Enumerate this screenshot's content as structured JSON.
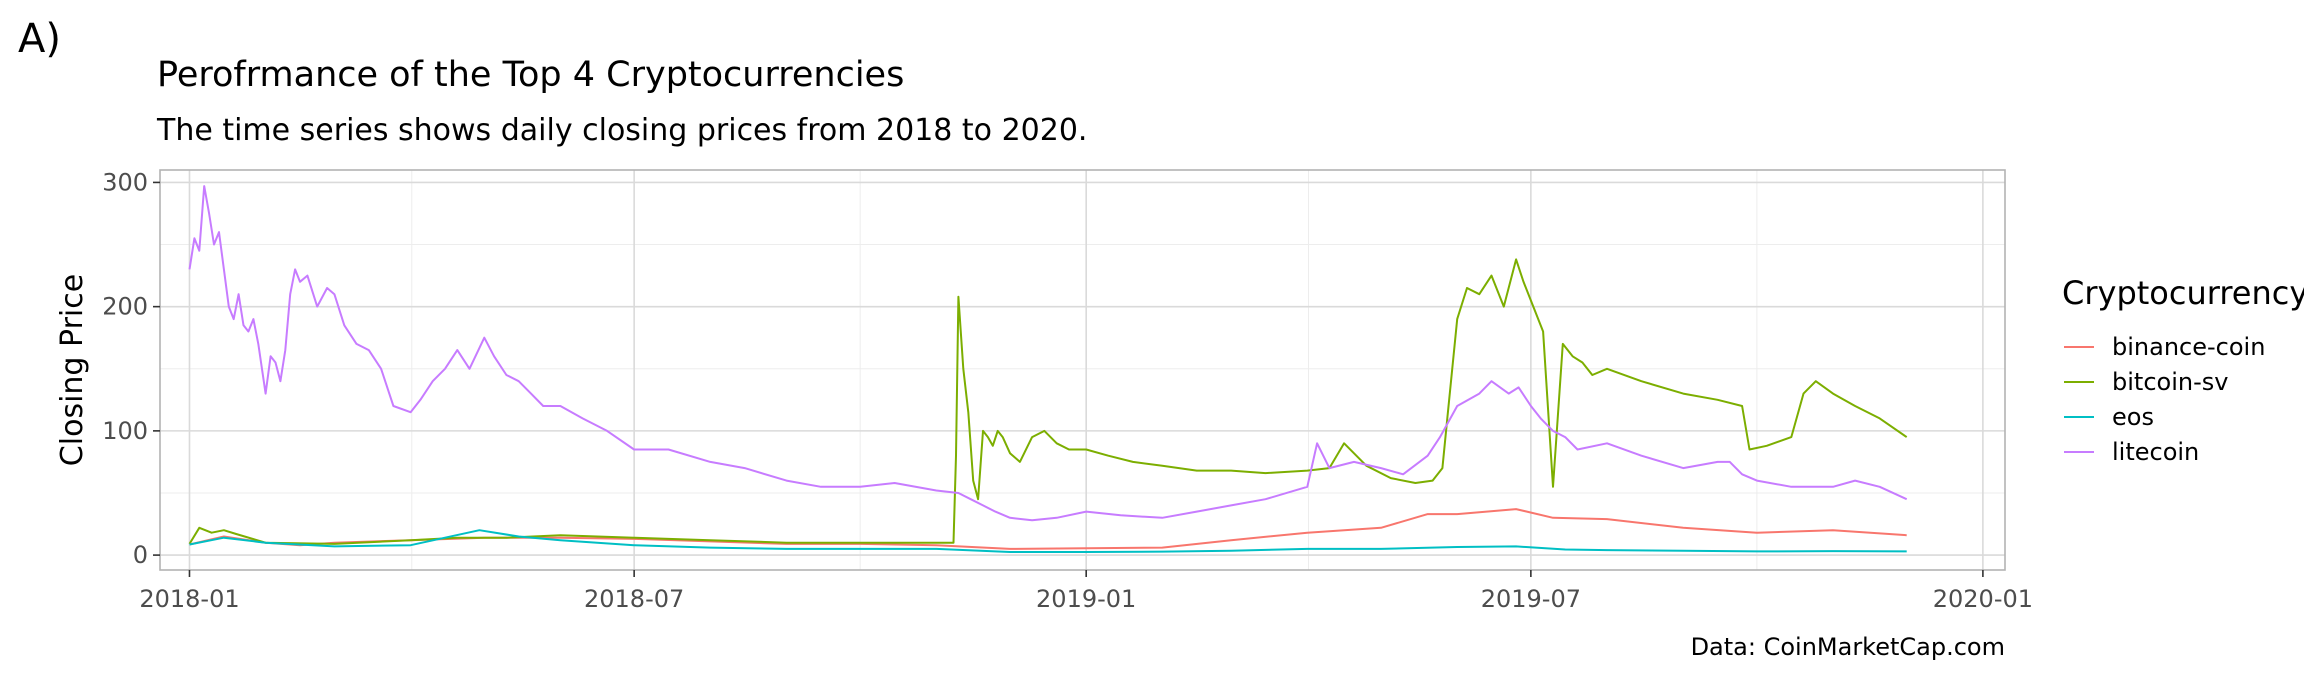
{
  "panel_label": "A)",
  "footer_caption": "Data: CoinMarketCap.com",
  "colors": {
    "binance-coin": "#F8766D",
    "bitcoin-sv": "#7CAE00",
    "eos": "#00BFC4",
    "litecoin": "#C77CFF",
    "grid_major": "#dadada",
    "grid_minor": "#ededed",
    "panel_border": "#b3b3b3",
    "text_dark": "#000000",
    "text_axis": "#4d4d4d"
  },
  "chart_data": {
    "type": "line",
    "title": "Perofrmance of the Top 4 Cryptocurrencies",
    "subtitle": "The time series shows daily closing prices from 2018 to 2020.",
    "xlabel": "",
    "ylabel": "Closing Price",
    "x_type": "date",
    "xlim": [
      "2017-12-20",
      "2020-01-10"
    ],
    "ylim": [
      -12,
      310
    ],
    "x_ticks": [
      "2018-01-01",
      "2018-07-01",
      "2019-01-01",
      "2019-07-01",
      "2020-01-01"
    ],
    "x_tick_labels": [
      "2018-01",
      "2018-07",
      "2019-01",
      "2019-07",
      "2020-01"
    ],
    "y_ticks": [
      0,
      100,
      200,
      300
    ],
    "y_tick_labels": [
      "0",
      "100",
      "200",
      "300"
    ],
    "grid": true,
    "legend": {
      "title": "Cryptocurrency",
      "position": "right"
    },
    "series": [
      {
        "name": "binance-coin",
        "x": [
          "2018-01-01",
          "2018-01-15",
          "2018-02-01",
          "2018-02-15",
          "2018-03-01",
          "2018-04-01",
          "2018-05-01",
          "2018-06-01",
          "2018-07-01",
          "2018-08-01",
          "2018-09-01",
          "2018-10-01",
          "2018-11-01",
          "2018-12-01",
          "2019-01-01",
          "2019-02-01",
          "2019-03-01",
          "2019-04-01",
          "2019-05-01",
          "2019-05-20",
          "2019-06-01",
          "2019-06-25",
          "2019-07-10",
          "2019-08-01",
          "2019-09-01",
          "2019-10-01",
          "2019-11-01",
          "2019-12-01"
        ],
        "values": [
          8.5,
          15,
          10,
          8,
          10,
          12,
          14,
          14,
          13,
          11,
          9,
          9,
          8,
          5,
          5.5,
          6,
          12,
          18,
          22,
          33,
          33,
          37,
          30,
          29,
          22,
          18,
          20,
          16
        ]
      },
      {
        "name": "bitcoin-sv",
        "x": [
          "2018-01-01",
          "2018-01-05",
          "2018-01-10",
          "2018-01-15",
          "2018-01-20",
          "2018-02-01",
          "2018-03-01",
          "2018-04-01",
          "2018-04-20",
          "2018-05-10",
          "2018-06-01",
          "2018-07-01",
          "2018-08-01",
          "2018-09-01",
          "2018-10-01",
          "2018-11-08",
          "2018-11-09",
          "2018-11-10",
          "2018-11-12",
          "2018-11-14",
          "2018-11-16",
          "2018-11-18",
          "2018-11-20",
          "2018-11-22",
          "2018-11-24",
          "2018-11-26",
          "2018-11-28",
          "2018-12-01",
          "2018-12-05",
          "2018-12-10",
          "2018-12-15",
          "2018-12-20",
          "2018-12-25",
          "2019-01-01",
          "2019-01-10",
          "2019-01-20",
          "2019-02-01",
          "2019-02-15",
          "2019-03-01",
          "2019-03-15",
          "2019-04-01",
          "2019-04-10",
          "2019-04-16",
          "2019-04-25",
          "2019-05-05",
          "2019-05-15",
          "2019-05-22",
          "2019-05-26",
          "2019-05-28",
          "2019-06-01",
          "2019-06-05",
          "2019-06-10",
          "2019-06-15",
          "2019-06-20",
          "2019-06-25",
          "2019-06-28",
          "2019-07-02",
          "2019-07-06",
          "2019-07-10",
          "2019-07-14",
          "2019-07-18",
          "2019-07-22",
          "2019-07-26",
          "2019-08-01",
          "2019-08-15",
          "2019-09-01",
          "2019-09-15",
          "2019-09-25",
          "2019-09-28",
          "2019-10-05",
          "2019-10-15",
          "2019-10-20",
          "2019-10-25",
          "2019-11-01",
          "2019-11-10",
          "2019-11-20",
          "2019-12-01"
        ],
        "values": [
          9,
          22,
          18,
          20,
          17,
          10,
          9,
          12,
          14,
          14,
          16,
          14,
          12,
          10,
          10,
          10,
          80,
          208,
          150,
          115,
          60,
          45,
          100,
          95,
          88,
          100,
          95,
          82,
          75,
          95,
          100,
          90,
          85,
          85,
          80,
          75,
          72,
          68,
          68,
          66,
          68,
          70,
          90,
          72,
          62,
          58,
          60,
          70,
          110,
          190,
          215,
          210,
          225,
          200,
          238,
          220,
          200,
          180,
          55,
          170,
          160,
          155,
          145,
          150,
          140,
          130,
          125,
          120,
          85,
          88,
          95,
          130,
          140,
          130,
          120,
          110,
          95
        ]
      },
      {
        "name": "eos",
        "x": [
          "2018-01-01",
          "2018-01-15",
          "2018-02-01",
          "2018-03-01",
          "2018-04-01",
          "2018-04-29",
          "2018-05-15",
          "2018-06-01",
          "2018-07-01",
          "2018-08-01",
          "2018-09-01",
          "2018-10-01",
          "2018-11-01",
          "2018-12-01",
          "2019-01-01",
          "2019-02-01",
          "2019-03-01",
          "2019-04-01",
          "2019-05-01",
          "2019-06-01",
          "2019-06-25",
          "2019-07-15",
          "2019-08-01",
          "2019-09-01",
          "2019-10-01",
          "2019-11-01",
          "2019-12-01"
        ],
        "values": [
          8.5,
          14,
          10,
          7,
          8,
          20,
          15,
          12,
          8,
          6,
          5,
          5,
          5,
          2.5,
          2.5,
          2.8,
          3.5,
          5,
          5,
          6.5,
          7,
          4.5,
          4,
          3.5,
          3,
          3.2,
          3
        ]
      },
      {
        "name": "litecoin",
        "x": [
          "2018-01-01",
          "2018-01-03",
          "2018-01-05",
          "2018-01-07",
          "2018-01-09",
          "2018-01-11",
          "2018-01-13",
          "2018-01-15",
          "2018-01-17",
          "2018-01-19",
          "2018-01-21",
          "2018-01-23",
          "2018-01-25",
          "2018-01-27",
          "2018-01-29",
          "2018-02-01",
          "2018-02-03",
          "2018-02-05",
          "2018-02-07",
          "2018-02-09",
          "2018-02-11",
          "2018-02-13",
          "2018-02-15",
          "2018-02-18",
          "2018-02-22",
          "2018-02-26",
          "2018-03-01",
          "2018-03-05",
          "2018-03-10",
          "2018-03-15",
          "2018-03-20",
          "2018-03-25",
          "2018-04-01",
          "2018-04-05",
          "2018-04-10",
          "2018-04-15",
          "2018-04-20",
          "2018-04-25",
          "2018-05-01",
          "2018-05-05",
          "2018-05-10",
          "2018-05-15",
          "2018-05-20",
          "2018-05-25",
          "2018-06-01",
          "2018-06-10",
          "2018-06-20",
          "2018-07-01",
          "2018-07-15",
          "2018-08-01",
          "2018-08-15",
          "2018-09-01",
          "2018-09-15",
          "2018-10-01",
          "2018-10-15",
          "2018-11-01",
          "2018-11-10",
          "2018-11-15",
          "2018-11-20",
          "2018-11-25",
          "2018-12-01",
          "2018-12-10",
          "2018-12-20",
          "2019-01-01",
          "2019-01-15",
          "2019-02-01",
          "2019-02-15",
          "2019-03-01",
          "2019-03-15",
          "2019-04-01",
          "2019-04-05",
          "2019-04-10",
          "2019-04-20",
          "2019-05-01",
          "2019-05-10",
          "2019-05-20",
          "2019-05-25",
          "2019-06-01",
          "2019-06-10",
          "2019-06-15",
          "2019-06-22",
          "2019-06-26",
          "2019-07-01",
          "2019-07-05",
          "2019-07-10",
          "2019-07-15",
          "2019-07-20",
          "2019-08-01",
          "2019-08-15",
          "2019-09-01",
          "2019-09-15",
          "2019-09-20",
          "2019-09-25",
          "2019-10-01",
          "2019-10-15",
          "2019-11-01",
          "2019-11-10",
          "2019-11-20",
          "2019-12-01"
        ],
        "values": [
          230,
          255,
          245,
          297,
          275,
          250,
          260,
          230,
          200,
          190,
          210,
          185,
          180,
          190,
          170,
          130,
          160,
          155,
          140,
          165,
          210,
          230,
          220,
          225,
          200,
          215,
          210,
          185,
          170,
          165,
          150,
          120,
          115,
          125,
          140,
          150,
          165,
          150,
          175,
          160,
          145,
          140,
          130,
          120,
          120,
          110,
          100,
          85,
          85,
          75,
          70,
          60,
          55,
          55,
          58,
          52,
          50,
          45,
          40,
          35,
          30,
          28,
          30,
          35,
          32,
          30,
          35,
          40,
          45,
          55,
          90,
          70,
          75,
          70,
          65,
          80,
          95,
          120,
          130,
          140,
          130,
          135,
          120,
          110,
          100,
          95,
          85,
          90,
          80,
          70,
          75,
          75,
          65,
          60,
          55,
          55,
          60,
          55,
          45
        ]
      }
    ]
  }
}
